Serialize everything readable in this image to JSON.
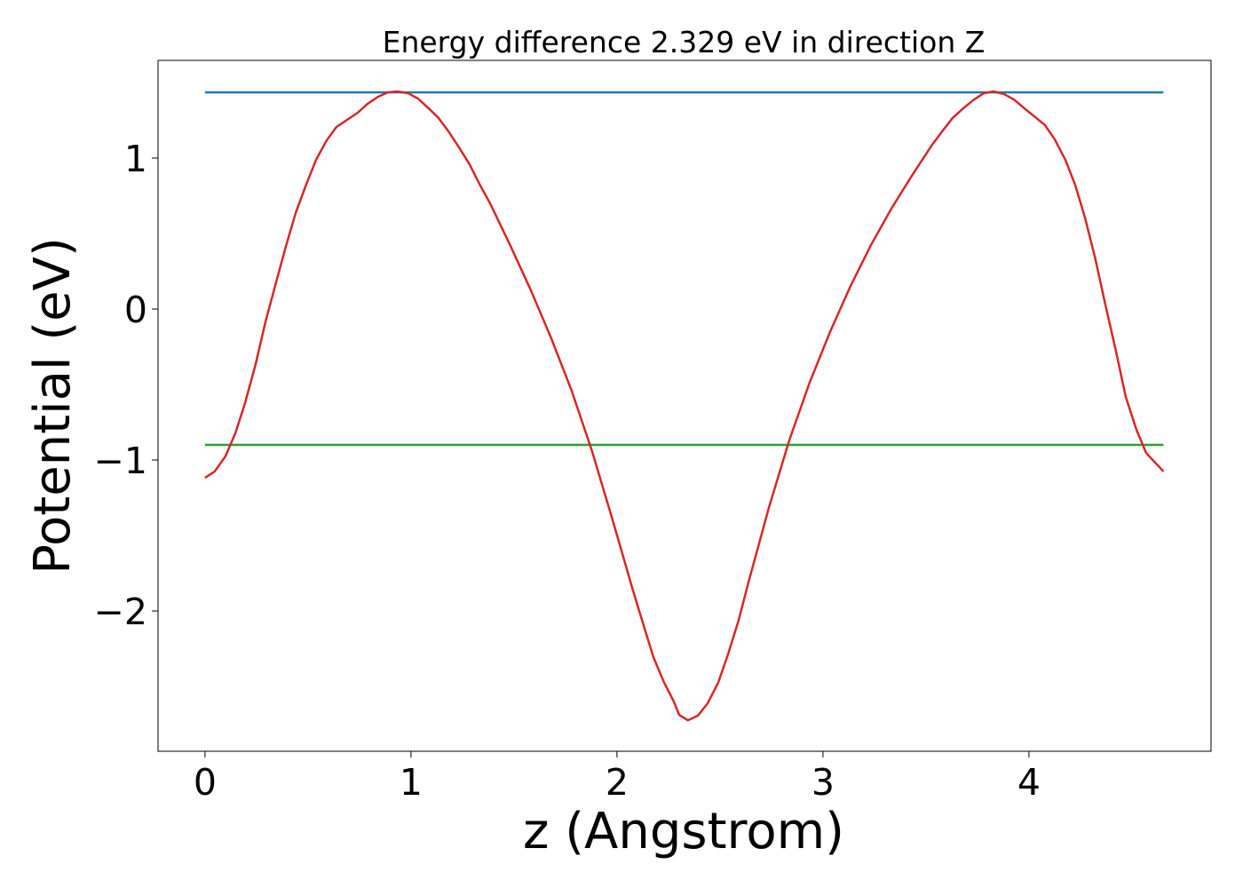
{
  "chart_data": {
    "type": "line",
    "title": "Energy difference 2.329 eV in direction Z",
    "xlabel": "z (Angstrom)",
    "ylabel": "Potential (eV)",
    "xlim": [
      -0.228,
      4.884
    ],
    "ylim": [
      -2.929,
      1.647
    ],
    "xticks": [
      0,
      1,
      2,
      3,
      4
    ],
    "yticks": [
      {
        "value": -2,
        "label": "−2"
      },
      {
        "value": -1,
        "label": "−1"
      },
      0,
      1
    ],
    "grid": false,
    "series": [
      {
        "color": "#d62728",
        "x": [
          0,
          0.047,
          0.099,
          0.147,
          0.194,
          0.246,
          0.293,
          0.345,
          0.392,
          0.44,
          0.491,
          0.539,
          0.591,
          0.638,
          0.741,
          0.789,
          0.84,
          0.888,
          0.935,
          0.987,
          1.034,
          1.086,
          1.134,
          1.185,
          1.233,
          1.284,
          1.332,
          1.384,
          1.483,
          1.582,
          1.681,
          1.78,
          1.879,
          1.978,
          2.078,
          2.129,
          2.177,
          2.228,
          2.276,
          2.302,
          2.345,
          2.392,
          2.44,
          2.491,
          2.539,
          2.591,
          2.638,
          2.737,
          2.836,
          2.935,
          3.034,
          3.134,
          3.233,
          3.332,
          3.431,
          3.53,
          3.582,
          3.629,
          3.681,
          3.728,
          3.78,
          3.828,
          3.879,
          3.927,
          3.978,
          4.026,
          4.078,
          4.125,
          4.177,
          4.224,
          4.272,
          4.323,
          4.371,
          4.422,
          4.47,
          4.522,
          4.569,
          4.653
        ],
        "values": [
          -1.118,
          -1.076,
          -0.976,
          -0.824,
          -0.624,
          -0.365,
          -0.088,
          0.176,
          0.412,
          0.635,
          0.824,
          0.988,
          1.118,
          1.206,
          1.3,
          1.359,
          1.406,
          1.435,
          1.441,
          1.429,
          1.394,
          1.329,
          1.265,
          1.171,
          1.071,
          0.959,
          0.829,
          0.7,
          0.418,
          0.124,
          -0.194,
          -0.541,
          -0.941,
          -1.394,
          -1.865,
          -2.094,
          -2.306,
          -2.471,
          -2.6,
          -2.688,
          -2.724,
          -2.694,
          -2.612,
          -2.476,
          -2.288,
          -2.059,
          -1.812,
          -1.318,
          -0.871,
          -0.488,
          -0.153,
          0.153,
          0.424,
          0.665,
          0.882,
          1.088,
          1.182,
          1.265,
          1.329,
          1.382,
          1.429,
          1.441,
          1.424,
          1.388,
          1.329,
          1.276,
          1.218,
          1.124,
          0.988,
          0.824,
          0.606,
          0.329,
          0.029,
          -0.276,
          -0.582,
          -0.8,
          -0.953,
          -1.076
        ]
      },
      {
        "color": "#1f77b4",
        "x": [
          0,
          4.653
        ],
        "values": [
          1.435,
          1.435
        ]
      },
      {
        "color": "#2ca02c",
        "x": [
          0,
          4.653
        ],
        "values": [
          -0.9,
          -0.9
        ]
      }
    ]
  }
}
